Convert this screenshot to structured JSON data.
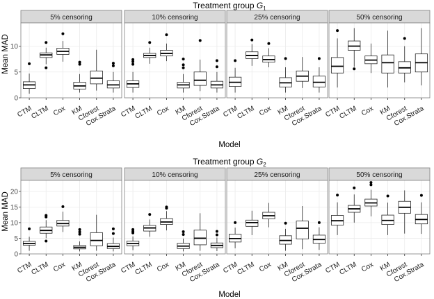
{
  "chart_data": [
    {
      "type": "boxplot",
      "title": "Treatment group",
      "title_symbol": "G",
      "title_subscript": "1",
      "xlabel": "Model",
      "ylabel": "Mean MAD",
      "ylim": [
        0,
        14.5
      ],
      "yticks": [
        0,
        5,
        10
      ],
      "models": [
        "CTM",
        "CLTM",
        "Cox",
        "KM",
        "Cforest",
        "Cox.Strata"
      ],
      "panels": [
        {
          "label": "5% censoring",
          "boxes": [
            {
              "model": "CTM",
              "whisker_low": 0.8,
              "q1": 1.8,
              "median": 2.5,
              "q3": 3.1,
              "whisker_high": 4.7,
              "outliers": [
                6.6
              ]
            },
            {
              "model": "CLTM",
              "whisker_low": 6.5,
              "q1": 7.8,
              "median": 8.3,
              "q3": 8.7,
              "whisker_high": 9.7,
              "outliers": [
                10.7,
                5.8
              ]
            },
            {
              "model": "Cox",
              "whisker_low": 7.0,
              "q1": 8.4,
              "median": 9.0,
              "q3": 9.6,
              "whisker_high": 11.0,
              "outliers": [
                12.4
              ]
            },
            {
              "model": "KM",
              "whisker_low": 1.0,
              "q1": 1.7,
              "median": 2.3,
              "q3": 3.0,
              "whisker_high": 4.6,
              "outliers": [
                6.5,
                6.9
              ]
            },
            {
              "model": "Cforest",
              "whisker_low": 1.4,
              "q1": 2.7,
              "median": 3.8,
              "q3": 5.2,
              "whisker_high": 9.3,
              "outliers": []
            },
            {
              "model": "Cox.Strata",
              "whisker_low": 1.0,
              "q1": 1.9,
              "median": 2.5,
              "q3": 3.3,
              "whisker_high": 5.0,
              "outliers": [
                6.2,
                6.7
              ]
            }
          ]
        },
        {
          "label": "10% censoring",
          "boxes": [
            {
              "model": "CTM",
              "whisker_low": 1.0,
              "q1": 2.0,
              "median": 2.7,
              "q3": 3.3,
              "whisker_high": 5.0,
              "outliers": [
                6.5,
                7.0,
                7.4
              ]
            },
            {
              "model": "CLTM",
              "whisker_low": 6.6,
              "q1": 7.8,
              "median": 8.2,
              "q3": 8.6,
              "whisker_high": 9.7,
              "outliers": [
                10.7
              ]
            },
            {
              "model": "Cox",
              "whisker_low": 7.1,
              "q1": 8.1,
              "median": 8.6,
              "q3": 9.2,
              "whisker_high": 10.5,
              "outliers": [
                12.2
              ]
            },
            {
              "model": "KM",
              "whisker_low": 1.0,
              "q1": 1.9,
              "median": 2.5,
              "q3": 3.0,
              "whisker_high": 4.6,
              "outliers": [
                5.8,
                6.4,
                7.5
              ]
            },
            {
              "model": "Cforest",
              "whisker_low": 1.3,
              "q1": 2.4,
              "median": 3.4,
              "q3": 5.0,
              "whisker_high": 7.4,
              "outliers": [
                11.1
              ]
            },
            {
              "model": "Cox.Strata",
              "whisker_low": 1.0,
              "q1": 1.9,
              "median": 2.5,
              "q3": 3.2,
              "whisker_high": 5.0,
              "outliers": [
                6.0,
                7.2
              ]
            }
          ]
        },
        {
          "label": "25% censoring",
          "boxes": [
            {
              "model": "CTM",
              "whisker_low": 1.0,
              "q1": 2.2,
              "median": 3.0,
              "q3": 4.0,
              "whisker_high": 5.8,
              "outliers": [
                7.2
              ]
            },
            {
              "model": "CLTM",
              "whisker_low": 6.2,
              "q1": 7.6,
              "median": 8.2,
              "q3": 8.9,
              "whisker_high": 10.4,
              "outliers": [
                11.2
              ]
            },
            {
              "model": "Cox",
              "whisker_low": 5.9,
              "q1": 6.9,
              "median": 7.4,
              "q3": 8.1,
              "whisker_high": 9.6,
              "outliers": [
                10.5
              ]
            },
            {
              "model": "KM",
              "whisker_low": 1.0,
              "q1": 2.1,
              "median": 2.9,
              "q3": 3.9,
              "whisker_high": 5.9,
              "outliers": [
                7.6
              ]
            },
            {
              "model": "Cforest",
              "whisker_low": 1.9,
              "q1": 3.2,
              "median": 4.2,
              "q3": 5.2,
              "whisker_high": 7.9,
              "outliers": []
            },
            {
              "model": "Cox.Strata",
              "whisker_low": 1.0,
              "q1": 2.1,
              "median": 3.0,
              "q3": 4.2,
              "whisker_high": 5.9,
              "outliers": [
                7.6
              ]
            }
          ]
        },
        {
          "label": "50% censoring",
          "boxes": [
            {
              "model": "CTM",
              "whisker_low": 2.0,
              "q1": 4.8,
              "median": 6.1,
              "q3": 7.8,
              "whisker_high": 11.5,
              "outliers": [
                13.0
              ]
            },
            {
              "model": "CLTM",
              "whisker_low": 6.0,
              "q1": 9.2,
              "median": 10.0,
              "q3": 11.0,
              "whisker_high": 13.5,
              "outliers": [
                5.6
              ]
            },
            {
              "model": "Cox",
              "whisker_low": 4.8,
              "q1": 6.6,
              "median": 7.3,
              "q3": 8.1,
              "whisker_high": 10.5,
              "outliers": []
            },
            {
              "model": "KM",
              "whisker_low": 2.0,
              "q1": 4.8,
              "median": 6.8,
              "q3": 8.3,
              "whisker_high": 13.0,
              "outliers": []
            },
            {
              "model": "Cforest",
              "whisker_low": 3.0,
              "q1": 4.8,
              "median": 5.8,
              "q3": 7.0,
              "whisker_high": 10.0,
              "outliers": [
                11.5
              ]
            },
            {
              "model": "Cox.Strata",
              "whisker_low": 2.4,
              "q1": 5.0,
              "median": 6.8,
              "q3": 8.5,
              "whisker_high": 13.5,
              "outliers": []
            }
          ]
        }
      ]
    },
    {
      "type": "boxplot",
      "title": "Treatment group",
      "title_symbol": "G",
      "title_subscript": "2",
      "xlabel": "Model",
      "ylabel": "Mean MAD",
      "ylim": [
        0,
        23.5
      ],
      "yticks": [
        0,
        5,
        10,
        15,
        20
      ],
      "models": [
        "CTM",
        "CLTM",
        "Cox",
        "KM",
        "Cforest",
        "Cox.Strata"
      ],
      "panels": [
        {
          "label": "5% censoring",
          "boxes": [
            {
              "model": "CTM",
              "whisker_low": 1.0,
              "q1": 2.8,
              "median": 3.3,
              "q3": 4.0,
              "whisker_high": 5.5,
              "outliers": [
                8.0
              ]
            },
            {
              "model": "CLTM",
              "whisker_low": 5.0,
              "q1": 6.6,
              "median": 7.5,
              "q3": 8.6,
              "whisker_high": 10.8,
              "outliers": [
                11.8,
                12.3,
                4.1
              ]
            },
            {
              "model": "Cox",
              "whisker_low": 7.0,
              "q1": 8.9,
              "median": 9.7,
              "q3": 10.7,
              "whisker_high": 13.5,
              "outliers": [
                15.1
              ]
            },
            {
              "model": "KM",
              "whisker_low": 0.8,
              "q1": 1.6,
              "median": 2.1,
              "q3": 2.7,
              "whisker_high": 4.0,
              "outliers": [
                6.3,
                7.0,
                7.8
              ]
            },
            {
              "model": "Cforest",
              "whisker_low": 1.0,
              "q1": 2.6,
              "median": 4.3,
              "q3": 6.8,
              "whisker_high": 12.5,
              "outliers": []
            },
            {
              "model": "Cox.Strata",
              "whisker_low": 0.8,
              "q1": 1.7,
              "median": 2.4,
              "q3": 3.3,
              "whisker_high": 5.2,
              "outliers": [
                6.5,
                8.0
              ]
            }
          ]
        },
        {
          "label": "10% censoring",
          "boxes": [
            {
              "model": "CTM",
              "whisker_low": 1.2,
              "q1": 2.6,
              "median": 3.3,
              "q3": 4.1,
              "whisker_high": 5.6,
              "outliers": [
                6.7,
                7.2,
                7.8
              ]
            },
            {
              "model": "CLTM",
              "whisker_low": 5.5,
              "q1": 7.3,
              "median": 8.3,
              "q3": 9.1,
              "whisker_high": 11.0,
              "outliers": [
                12.6
              ]
            },
            {
              "model": "Cox",
              "whisker_low": 7.5,
              "q1": 9.4,
              "median": 10.2,
              "q3": 11.3,
              "whisker_high": 13.7,
              "outliers": [
                14.6,
                15.0
              ]
            },
            {
              "model": "KM",
              "whisker_low": 0.8,
              "q1": 1.7,
              "median": 2.5,
              "q3": 3.4,
              "whisker_high": 4.9,
              "outliers": [
                6.2,
                7.1
              ]
            },
            {
              "model": "Cforest",
              "whisker_low": 1.0,
              "q1": 2.9,
              "median": 5.0,
              "q3": 7.6,
              "whisker_high": 13.0,
              "outliers": []
            },
            {
              "model": "Cox.Strata",
              "whisker_low": 0.9,
              "q1": 2.0,
              "median": 2.7,
              "q3": 3.5,
              "whisker_high": 5.2,
              "outliers": [
                6.1,
                7.2
              ]
            }
          ]
        },
        {
          "label": "25% censoring",
          "boxes": [
            {
              "model": "CTM",
              "whisker_low": 1.8,
              "q1": 3.8,
              "median": 4.9,
              "q3": 6.3,
              "whisker_high": 8.4,
              "outliers": [
                10.0
              ]
            },
            {
              "model": "CLTM",
              "whisker_low": 6.0,
              "q1": 8.8,
              "median": 10.0,
              "q3": 10.8,
              "whisker_high": 13.8,
              "outliers": []
            },
            {
              "model": "Cox",
              "whisker_low": 8.5,
              "q1": 11.2,
              "median": 12.2,
              "q3": 13.3,
              "whisker_high": 16.3,
              "outliers": []
            },
            {
              "model": "KM",
              "whisker_low": 1.0,
              "q1": 3.1,
              "median": 4.3,
              "q3": 5.8,
              "whisker_high": 8.0,
              "outliers": [
                9.8
              ]
            },
            {
              "model": "Cforest",
              "whisker_low": 1.5,
              "q1": 4.8,
              "median": 8.2,
              "q3": 10.5,
              "whisker_high": 15.3,
              "outliers": []
            },
            {
              "model": "Cox.Strata",
              "whisker_low": 1.3,
              "q1": 3.4,
              "median": 4.6,
              "q3": 6.0,
              "whisker_high": 8.5,
              "outliers": [
                10.0
              ]
            }
          ]
        },
        {
          "label": "50% censoring",
          "boxes": [
            {
              "model": "CTM",
              "whisker_low": 6.0,
              "q1": 9.2,
              "median": 10.6,
              "q3": 12.3,
              "whisker_high": 16.5,
              "outliers": [
                18.8
              ]
            },
            {
              "model": "CLTM",
              "whisker_low": 10.0,
              "q1": 13.3,
              "median": 14.4,
              "q3": 15.5,
              "whisker_high": 19.0,
              "outliers": [
                21.1
              ]
            },
            {
              "model": "Cox",
              "whisker_low": 12.0,
              "q1": 15.3,
              "median": 16.3,
              "q3": 17.5,
              "whisker_high": 20.5,
              "outliers": [
                22.1,
                22.8
              ]
            },
            {
              "model": "KM",
              "whisker_low": 6.0,
              "q1": 9.4,
              "median": 10.7,
              "q3": 12.4,
              "whisker_high": 16.4,
              "outliers": [
                18.5
              ]
            },
            {
              "model": "Cforest",
              "whisker_low": 6.5,
              "q1": 13.0,
              "median": 14.9,
              "q3": 16.8,
              "whisker_high": 20.3,
              "outliers": []
            },
            {
              "model": "Cox.Strata",
              "whisker_low": 6.4,
              "q1": 9.6,
              "median": 11.0,
              "q3": 12.6,
              "whisker_high": 16.5,
              "outliers": [
                18.7
              ]
            }
          ]
        }
      ]
    }
  ],
  "colors": {
    "panel_bg": "#ffffff",
    "panel_border": "#7f7f7f",
    "strip_bg": "#d9d9d9",
    "grid": "#ebebeb",
    "box_line": "#222222",
    "tick_text": "#4d4d4d"
  }
}
